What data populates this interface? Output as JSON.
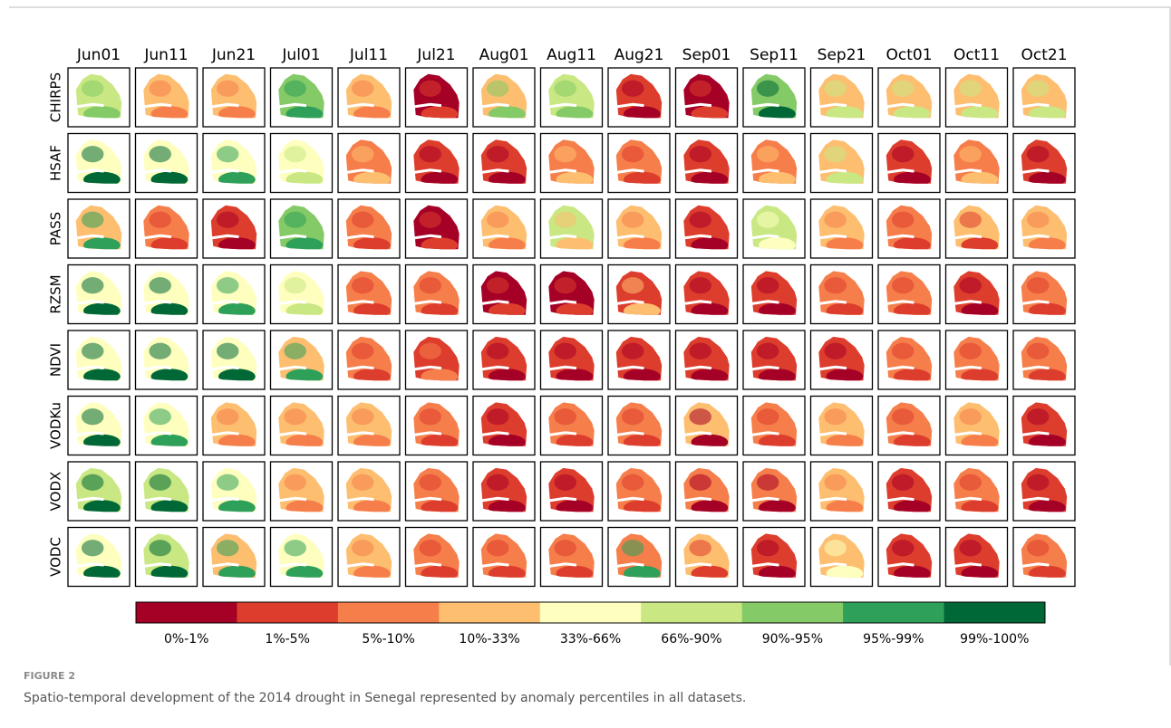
{
  "figure": {
    "columns": [
      "Jun01",
      "Jun11",
      "Jun21",
      "Jul01",
      "Jul11",
      "Jul21",
      "Aug01",
      "Aug11",
      "Aug21",
      "Sep01",
      "Sep11",
      "Sep21",
      "Oct01",
      "Oct11",
      "Oct21"
    ],
    "rows": [
      "CHIRPS",
      "HSAF",
      "PASS",
      "RZSM",
      "NDVI",
      "VODKu",
      "VODX",
      "VODC"
    ],
    "legend": {
      "labels": [
        "0%-1%",
        "1%-5%",
        "5%-10%",
        "10%-33%",
        "33%-66%",
        "66%-90%",
        "90%-95%",
        "95%-99%",
        "99%-100%"
      ],
      "colors": [
        "#a50026",
        "#dd3d2d",
        "#f67e4b",
        "#fdbe70",
        "#feffbe",
        "#c9e883",
        "#84ca66",
        "#2fa05a",
        "#006837"
      ]
    },
    "caption": {
      "label": "FIGURE 2",
      "text": "Spatio-temporal development of the 2014 drought in Senegal represented by anomaly percentiles in all datasets."
    }
  }
}
